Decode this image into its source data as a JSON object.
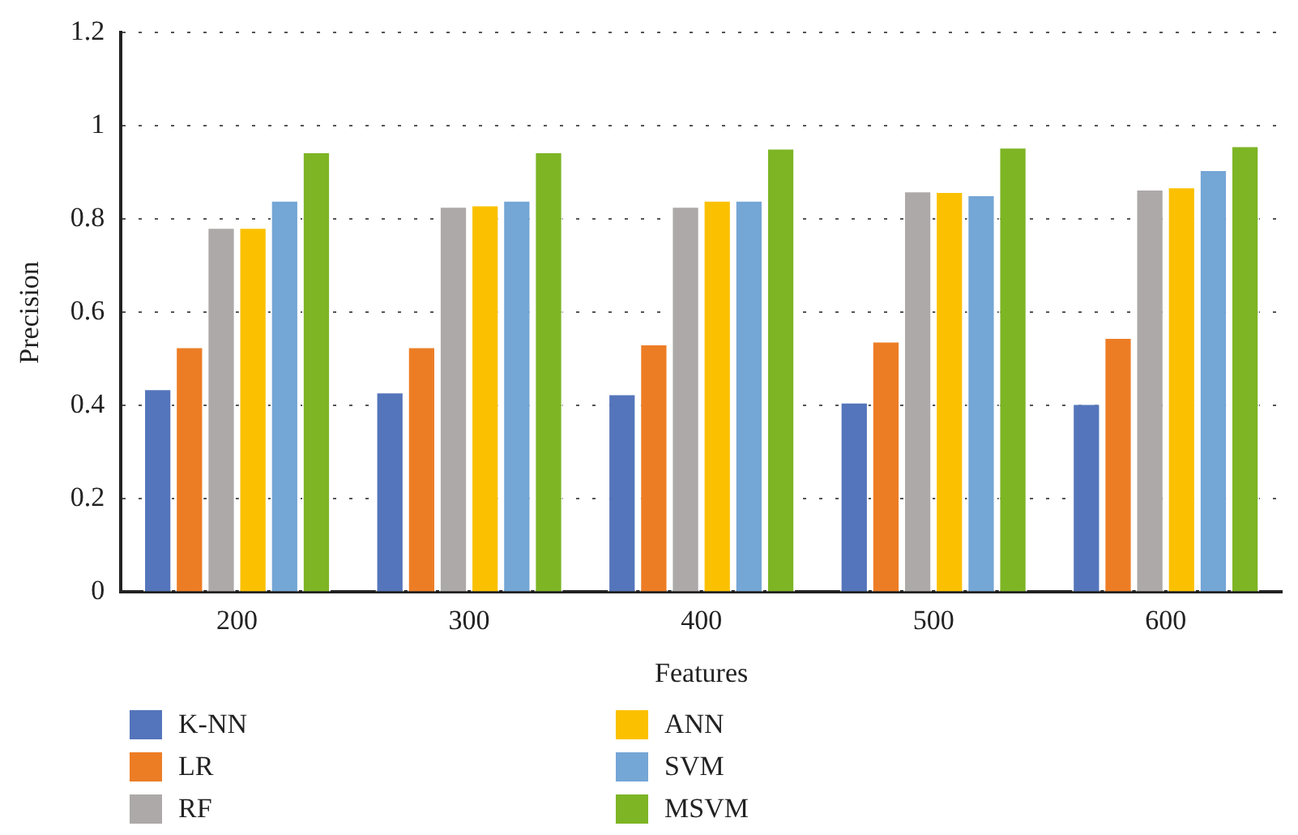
{
  "chart_data": {
    "type": "bar",
    "xlabel": "Features",
    "ylabel": "Precision",
    "categories": [
      "200",
      "300",
      "400",
      "500",
      "600"
    ],
    "series": [
      {
        "name": "K-NN",
        "color": "#5475bb",
        "values": [
          0.437,
          0.43,
          0.426,
          0.408,
          0.405
        ]
      },
      {
        "name": "LR",
        "color": "#ed7d25",
        "values": [
          0.527,
          0.527,
          0.533,
          0.539,
          0.547
        ]
      },
      {
        "name": "RF",
        "color": "#aca9a8",
        "values": [
          0.783,
          0.828,
          0.828,
          0.861,
          0.865
        ]
      },
      {
        "name": "ANN",
        "color": "#fbc100",
        "values": [
          0.783,
          0.831,
          0.841,
          0.86,
          0.87
        ]
      },
      {
        "name": "SVM",
        "color": "#74a6d6",
        "values": [
          0.841,
          0.841,
          0.841,
          0.853,
          0.907
        ]
      },
      {
        "name": "MSVM",
        "color": "#7db525",
        "values": [
          0.945,
          0.945,
          0.953,
          0.955,
          0.958
        ]
      }
    ],
    "ylim": [
      0,
      1.2
    ],
    "yticks": [
      0,
      0.2,
      0.4,
      0.6,
      0.8,
      1,
      1.2
    ],
    "grid": "y",
    "legend": "bottom"
  }
}
